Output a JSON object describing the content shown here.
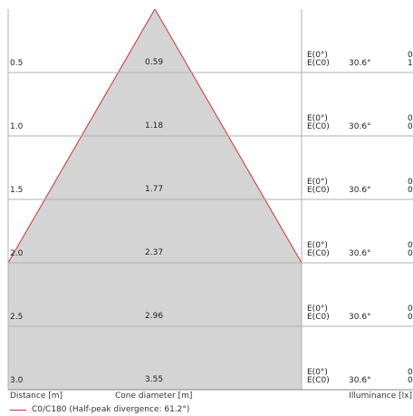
{
  "colors": {
    "cone_fill": "#d4d4d4",
    "cone_edge": "#cc3333",
    "grid": "#b0b0b0",
    "legend_line": "#cc3333"
  },
  "rows": [
    {
      "distance": "0.5",
      "diameter": "0.59",
      "e1": "E(0°)",
      "e2": "E(C0)",
      "angle": "30.6°",
      "v1": "0",
      "v2": "1"
    },
    {
      "distance": "1.0",
      "diameter": "1.18",
      "e1": "E(0°)",
      "e2": "E(C0)",
      "angle": "30.6°",
      "v1": "0",
      "v2": "0"
    },
    {
      "distance": "1.5",
      "diameter": "1.77",
      "e1": "E(0°)",
      "e2": "E(C0)",
      "angle": "30.6°",
      "v1": "0",
      "v2": "0"
    },
    {
      "distance": "2.0",
      "diameter": "2.37",
      "e1": "E(0°)",
      "e2": "E(C0)",
      "angle": "30.6°",
      "v1": "0",
      "v2": "0"
    },
    {
      "distance": "2.5",
      "diameter": "2.96",
      "e1": "E(0°)",
      "e2": "E(C0)",
      "angle": "30.6°",
      "v1": "0",
      "v2": "0"
    },
    {
      "distance": "3.0",
      "diameter": "3.55",
      "e1": "E(0°)",
      "e2": "E(C0)",
      "angle": "30.6°",
      "v1": "0",
      "v2": "0"
    }
  ],
  "footer": {
    "distance_label": "Distance [m]",
    "diameter_label": "Cone diameter [m]",
    "illuminance_label": "Illuminance [lx]",
    "legend_label": "C0/C180 (Half-peak divergence: 61.2°)"
  }
}
